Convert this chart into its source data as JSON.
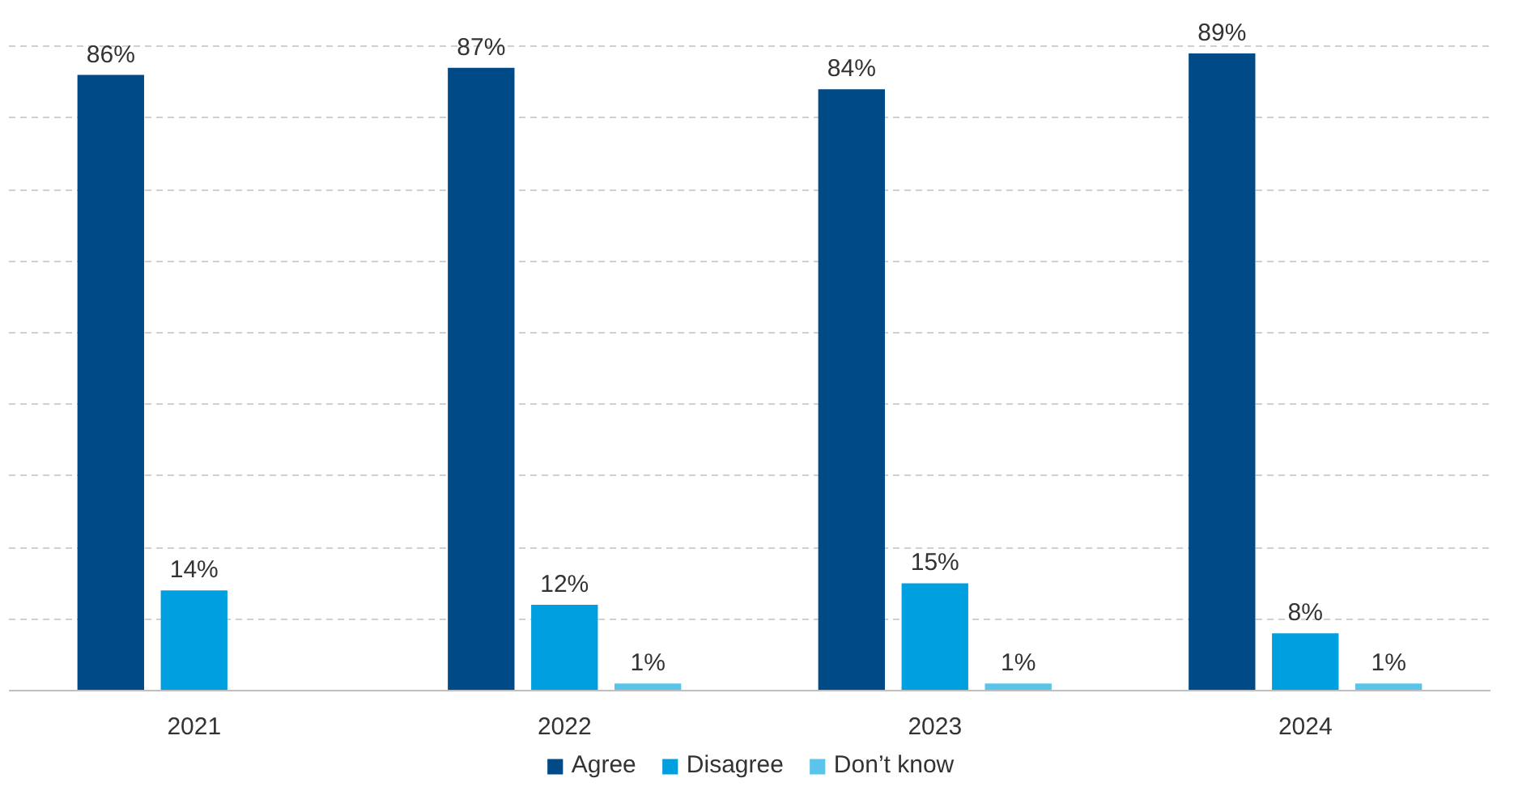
{
  "chart_data": {
    "type": "bar",
    "categories": [
      "2021",
      "2022",
      "2023",
      "2024"
    ],
    "series": [
      {
        "name": "Agree",
        "color": "#004a87",
        "values": [
          86,
          87,
          84,
          89
        ],
        "value_labels": [
          "86%",
          "87%",
          "84%",
          "89%"
        ]
      },
      {
        "name": "Disagree",
        "color": "#009fdf",
        "values": [
          14,
          12,
          15,
          8
        ],
        "value_labels": [
          "14%",
          "12%",
          "15%",
          "8%"
        ]
      },
      {
        "name": "Don’t know",
        "color": "#5bc4ea",
        "values": [
          null,
          1,
          1,
          1
        ],
        "value_labels": [
          null,
          "1%",
          "1%",
          "1%"
        ]
      }
    ],
    "tick_labels": "x",
    "grid": "y",
    "legend": "bottom"
  }
}
